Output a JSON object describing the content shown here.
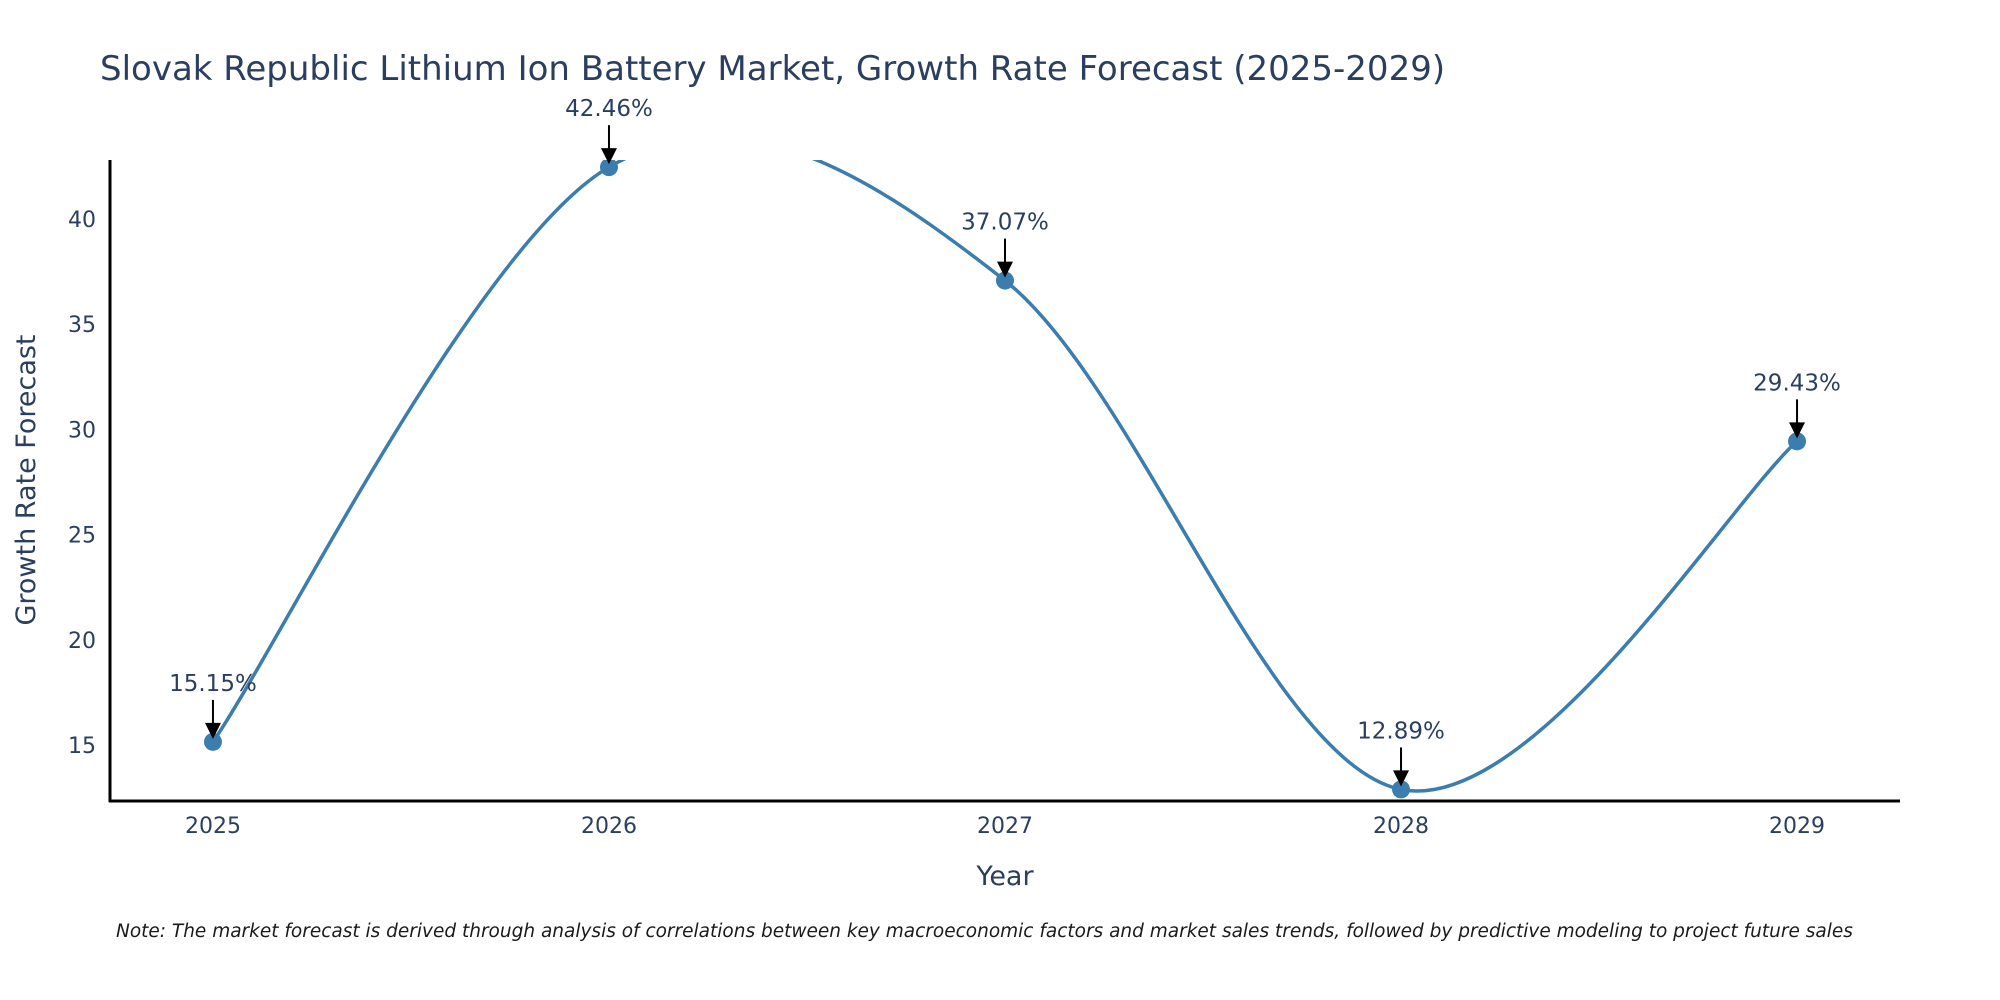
{
  "chart_data": {
    "type": "line",
    "title": "Slovak Republic Lithium Ion Battery Market, Growth Rate Forecast (2025-2029)",
    "xlabel": "Year",
    "ylabel": "Growth Rate Forecast",
    "categories": [
      "2025",
      "2026",
      "2027",
      "2028",
      "2029"
    ],
    "x": [
      2025,
      2026,
      2027,
      2028,
      2029
    ],
    "values": [
      15.15,
      42.46,
      37.07,
      12.89,
      29.43
    ],
    "data_labels": [
      "15.15%",
      "42.46%",
      "37.07%",
      "12.89%",
      "29.43%"
    ],
    "yticks": [
      15,
      20,
      25,
      30,
      35,
      40
    ],
    "ytick_labels": [
      "15",
      "20",
      "25",
      "30",
      "35",
      "40"
    ],
    "xlim": [
      2024.74,
      2029.26
    ],
    "ylim": [
      12.34,
      42.8
    ],
    "line_shape": "spline",
    "grid": false,
    "legend": "none",
    "colors": {
      "line": "#3a7dae",
      "marker": "#3a7dae",
      "arrow": "#000000",
      "axis": "#000000",
      "text": "#2a3f5f"
    },
    "note": "Note: The market forecast is derived through analysis of correlations between key macroeconomic factors and market sales trends, followed by predictive modeling to project future sales"
  }
}
